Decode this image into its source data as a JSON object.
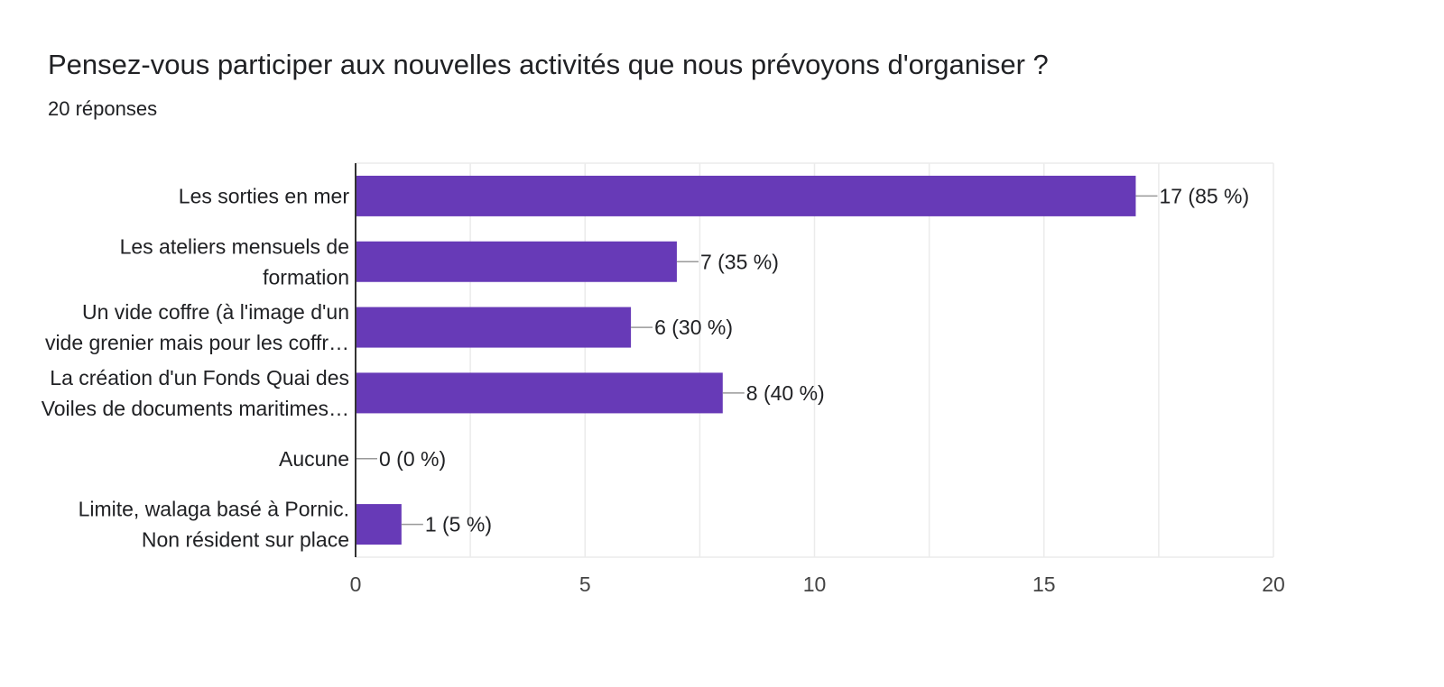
{
  "header": {
    "title": "Pensez-vous participer aux nouvelles activités que nous prévoyons d'organiser ?",
    "subtitle": "20 réponses"
  },
  "colors": {
    "bar": "#673ab7",
    "grid": "#ebebeb",
    "axis": "#333333",
    "leader": "#999999"
  },
  "chart_data": {
    "type": "bar",
    "orientation": "horizontal",
    "title": "Pensez-vous participer aux nouvelles activités que nous prévoyons d'organiser ?",
    "categories": [
      [
        "Les sorties en mer"
      ],
      [
        "Les ateliers mensuels de",
        "formation"
      ],
      [
        "Un vide coffre (à l'image d'un",
        "vide grenier mais pour les coffr…"
      ],
      [
        "La création d'un Fonds Quai des",
        "Voiles de documents maritimes…"
      ],
      [
        "Aucune"
      ],
      [
        "Limite, walaga basé à Pornic.",
        "Non résident sur place"
      ]
    ],
    "values": [
      17,
      7,
      6,
      8,
      0,
      1
    ],
    "value_labels": [
      "17 (85 %)",
      "7 (35 %)",
      "6 (30 %)",
      "8 (40 %)",
      "0 (0 %)",
      "1 (5 %)"
    ],
    "xlim": [
      0,
      20
    ],
    "xticks": [
      0,
      5,
      10,
      15,
      20
    ],
    "xlabel": "",
    "ylabel": "",
    "grid": true
  }
}
